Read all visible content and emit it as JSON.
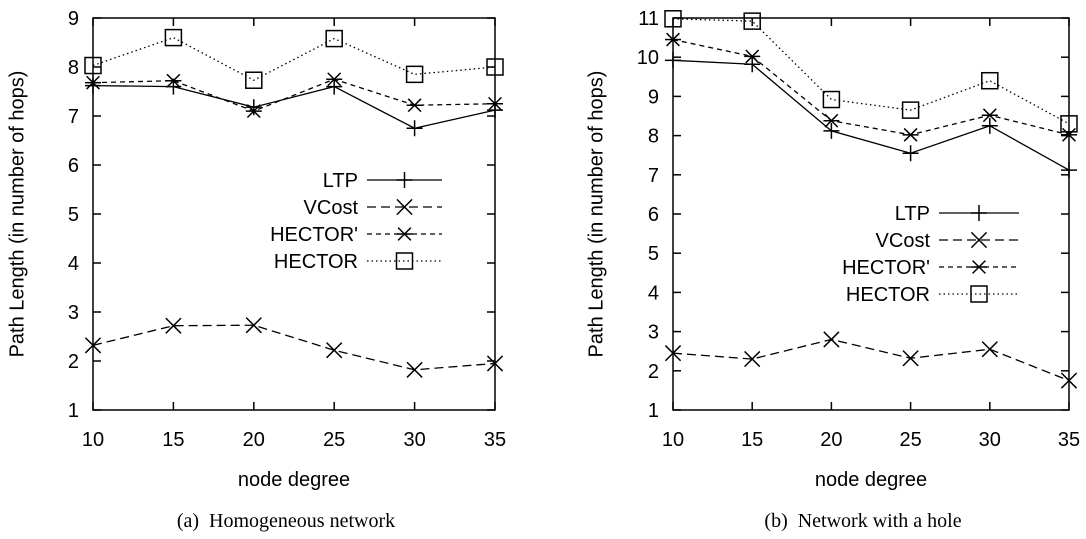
{
  "chart_data": [
    {
      "type": "line",
      "caption": "(a)  Homogeneous network",
      "xlabel": "node degree",
      "ylabel": "Path Length (in number of hops)",
      "x": [
        10,
        15,
        20,
        25,
        30,
        35
      ],
      "xticks": [
        "10",
        "15",
        "20",
        "25",
        "30",
        "35"
      ],
      "yticks": [
        "1",
        "2",
        "3",
        "4",
        "5",
        "6",
        "7",
        "8",
        "9"
      ],
      "xlim": [
        10,
        35
      ],
      "ylim": [
        1,
        9
      ],
      "grid": false,
      "legend_position": "middle-right",
      "series": [
        {
          "name": "LTP",
          "values": [
            7.62,
            7.6,
            7.18,
            7.6,
            6.75,
            7.12
          ],
          "line": "solid",
          "marker": "plus"
        },
        {
          "name": "VCost",
          "values": [
            2.32,
            2.72,
            2.73,
            2.22,
            1.82,
            1.95
          ],
          "line": "dashed",
          "marker": "x"
        },
        {
          "name": "HECTOR'",
          "values": [
            7.68,
            7.72,
            7.1,
            7.75,
            7.22,
            7.25
          ],
          "line": "short-dashed",
          "marker": "asterisk"
        },
        {
          "name": "HECTOR",
          "values": [
            8.03,
            8.6,
            7.73,
            8.58,
            7.85,
            8.0
          ],
          "line": "dotted",
          "marker": "square"
        }
      ]
    },
    {
      "type": "line",
      "caption": "(b)  Network with a hole",
      "xlabel": "node degree",
      "ylabel": "Path Length (in number of hops)",
      "x": [
        10,
        15,
        20,
        25,
        30,
        35
      ],
      "xticks": [
        "10",
        "15",
        "20",
        "25",
        "30",
        "35"
      ],
      "yticks": [
        "1",
        "2",
        "3",
        "4",
        "5",
        "6",
        "7",
        "8",
        "9",
        "10",
        "11"
      ],
      "xlim": [
        10,
        35
      ],
      "ylim": [
        1,
        11
      ],
      "grid": false,
      "legend_position": "middle-right",
      "series": [
        {
          "name": "LTP",
          "values": [
            9.92,
            9.82,
            8.12,
            7.55,
            8.25,
            7.12
          ],
          "line": "solid",
          "marker": "plus"
        },
        {
          "name": "VCost",
          "values": [
            2.45,
            2.3,
            2.8,
            2.32,
            2.55,
            1.75
          ],
          "line": "dashed",
          "marker": "x"
        },
        {
          "name": "HECTOR'",
          "values": [
            10.45,
            10.02,
            8.38,
            8.02,
            8.52,
            8.02
          ],
          "line": "short-dashed",
          "marker": "asterisk"
        },
        {
          "name": "HECTOR",
          "values": [
            10.98,
            10.92,
            8.92,
            8.65,
            9.4,
            8.3
          ],
          "line": "dotted",
          "marker": "square"
        }
      ]
    }
  ]
}
